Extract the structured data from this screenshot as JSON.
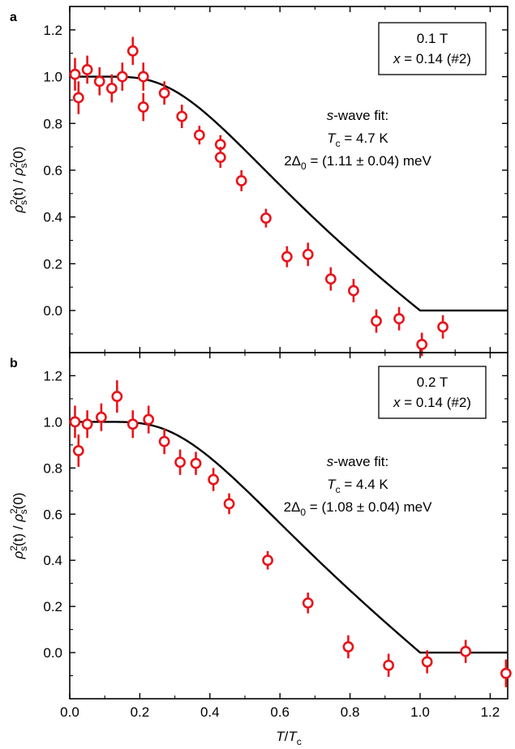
{
  "chart_data": [
    {
      "type": "scatter",
      "panel_label": "a",
      "legend_box": {
        "line1": "0.1 T",
        "line2_var": "x",
        "line2_rest": " = 0.14 (#2)"
      },
      "annotation": {
        "line1_italic": "s",
        "line1_rest": "-wave fit:",
        "line2": "= 4.7 K",
        "line3": "= (1.11 ± 0.04) meV"
      },
      "fit": {
        "Tc": 4.7,
        "gap": 1.11
      },
      "ylim": [
        -0.18,
        1.3
      ],
      "yticks": [
        "0.0",
        "0.2",
        "0.4",
        "0.6",
        "0.8",
        "1.0",
        "1.2"
      ],
      "ytick_values": [
        0.0,
        0.2,
        0.4,
        0.6,
        0.8,
        1.0,
        1.2
      ],
      "points": [
        {
          "x": 0.015,
          "y": 1.01,
          "err": 0.07
        },
        {
          "x": 0.025,
          "y": 0.91,
          "err": 0.07
        },
        {
          "x": 0.05,
          "y": 1.03,
          "err": 0.06
        },
        {
          "x": 0.085,
          "y": 0.98,
          "err": 0.06
        },
        {
          "x": 0.12,
          "y": 0.95,
          "err": 0.06
        },
        {
          "x": 0.15,
          "y": 1.0,
          "err": 0.06
        },
        {
          "x": 0.18,
          "y": 1.11,
          "err": 0.06
        },
        {
          "x": 0.21,
          "y": 1.0,
          "err": 0.06
        },
        {
          "x": 0.21,
          "y": 0.87,
          "err": 0.06
        },
        {
          "x": 0.27,
          "y": 0.93,
          "err": 0.05
        },
        {
          "x": 0.32,
          "y": 0.83,
          "err": 0.05
        },
        {
          "x": 0.37,
          "y": 0.75,
          "err": 0.04
        },
        {
          "x": 0.43,
          "y": 0.71,
          "err": 0.04
        },
        {
          "x": 0.43,
          "y": 0.655,
          "err": 0.045
        },
        {
          "x": 0.49,
          "y": 0.555,
          "err": 0.045
        },
        {
          "x": 0.56,
          "y": 0.395,
          "err": 0.04
        },
        {
          "x": 0.62,
          "y": 0.23,
          "err": 0.045
        },
        {
          "x": 0.68,
          "y": 0.24,
          "err": 0.05
        },
        {
          "x": 0.745,
          "y": 0.135,
          "err": 0.05
        },
        {
          "x": 0.81,
          "y": 0.085,
          "err": 0.05
        },
        {
          "x": 0.875,
          "y": -0.045,
          "err": 0.05
        },
        {
          "x": 0.94,
          "y": -0.035,
          "err": 0.05
        },
        {
          "x": 1.005,
          "y": -0.145,
          "err": 0.05
        },
        {
          "x": 1.065,
          "y": -0.07,
          "err": 0.05
        }
      ]
    },
    {
      "type": "scatter",
      "panel_label": "b",
      "legend_box": {
        "line1": "0.2 T",
        "line2_var": "x",
        "line2_rest": " = 0.14 (#2)"
      },
      "annotation": {
        "line1_italic": "s",
        "line1_rest": "-wave fit:",
        "line2": "= 4.4 K",
        "line3": "= (1.08 ± 0.04) meV"
      },
      "fit": {
        "Tc": 4.4,
        "gap": 1.08
      },
      "ylim": [
        -0.2,
        1.3
      ],
      "yticks": [
        "0.0",
        "0.2",
        "0.4",
        "0.6",
        "0.8",
        "1.0",
        "1.2"
      ],
      "ytick_values": [
        0.0,
        0.2,
        0.4,
        0.6,
        0.8,
        1.0,
        1.2
      ],
      "points": [
        {
          "x": 0.015,
          "y": 1.0,
          "err": 0.07
        },
        {
          "x": 0.025,
          "y": 0.875,
          "err": 0.07
        },
        {
          "x": 0.05,
          "y": 0.99,
          "err": 0.06
        },
        {
          "x": 0.09,
          "y": 1.02,
          "err": 0.06
        },
        {
          "x": 0.135,
          "y": 1.11,
          "err": 0.07
        },
        {
          "x": 0.18,
          "y": 0.99,
          "err": 0.06
        },
        {
          "x": 0.225,
          "y": 1.01,
          "err": 0.06
        },
        {
          "x": 0.27,
          "y": 0.915,
          "err": 0.055
        },
        {
          "x": 0.315,
          "y": 0.825,
          "err": 0.055
        },
        {
          "x": 0.36,
          "y": 0.82,
          "err": 0.05
        },
        {
          "x": 0.41,
          "y": 0.75,
          "err": 0.05
        },
        {
          "x": 0.455,
          "y": 0.645,
          "err": 0.045
        },
        {
          "x": 0.565,
          "y": 0.4,
          "err": 0.04
        },
        {
          "x": 0.68,
          "y": 0.215,
          "err": 0.045
        },
        {
          "x": 0.795,
          "y": 0.025,
          "err": 0.05
        },
        {
          "x": 0.91,
          "y": -0.055,
          "err": 0.05
        },
        {
          "x": 1.02,
          "y": -0.04,
          "err": 0.05
        },
        {
          "x": 1.13,
          "y": 0.005,
          "err": 0.05
        },
        {
          "x": 1.245,
          "y": -0.09,
          "err": 0.06
        }
      ]
    }
  ],
  "x_axis": {
    "xlim": [
      0.0,
      1.25
    ],
    "ticks": [
      "0.0",
      "0.2",
      "0.4",
      "0.6",
      "0.8",
      "1.0",
      "1.2"
    ],
    "tick_values": [
      0.0,
      0.2,
      0.4,
      0.6,
      0.8,
      1.0,
      1.2
    ],
    "label_italic": "T",
    "label_slash": "/",
    "label_italic2": "T",
    "label_sub": "c"
  },
  "y_axis_label": {
    "rho": "ρ",
    "sup": "2",
    "sub": "s",
    "arg": "(t)",
    "slash": " / ",
    "arg0": "(0)"
  },
  "colors": {
    "marker": "#e8141b",
    "fit_line": "#000000",
    "axis": "#000000"
  },
  "fit_symbols": {
    "Tc_main": "T",
    "Tc_sub": "c",
    "gap_main": "2Δ",
    "gap_sub": "0"
  }
}
